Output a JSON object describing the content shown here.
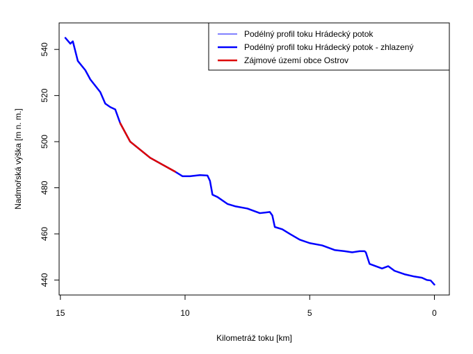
{
  "chart_data": {
    "type": "line",
    "xlabel": "Kilometráž toku [km]",
    "ylabel": "Nadmořská výška [m n. m.]",
    "xlim": [
      15.05,
      -0.6
    ],
    "ylim": [
      433.5,
      551.5
    ],
    "x_reversed": true,
    "x_ticks": [
      15,
      10,
      5,
      0
    ],
    "y_ticks": [
      440,
      460,
      480,
      500,
      520,
      540
    ],
    "grid": false,
    "legend_position": "top-right",
    "series": [
      {
        "name": "Podélný profil toku Hrádecký potok",
        "color": "#0000ff",
        "line_width": 1,
        "x": [
          14.8,
          14.6,
          14.5,
          14.3,
          14.0,
          13.8,
          13.4,
          13.2,
          13.0,
          12.8,
          12.6,
          12.4,
          12.2,
          11.8,
          11.4,
          10.9,
          10.4,
          10.1,
          9.8,
          9.4,
          9.1,
          9.0,
          8.9,
          8.7,
          8.3,
          8.0,
          7.5,
          7.0,
          6.6,
          6.5,
          6.4,
          6.1,
          5.8,
          5.4,
          5.0,
          4.5,
          4.0,
          3.6,
          3.3,
          3.0,
          2.8,
          2.75,
          2.6,
          2.1,
          1.85,
          1.6,
          1.2,
          0.8,
          0.5,
          0.3,
          0.15,
          0.0
        ],
        "y": [
          545,
          542.5,
          543.5,
          535,
          531,
          527,
          521.5,
          516.5,
          515,
          514,
          508,
          504,
          500,
          496.5,
          493,
          490,
          487,
          485,
          485,
          485.5,
          485.3,
          483,
          477,
          476,
          473,
          472,
          471,
          469,
          469.5,
          468,
          463,
          462,
          460,
          457.5,
          456,
          455,
          453,
          452.5,
          452,
          452.5,
          452.5,
          452,
          447,
          445,
          446,
          444,
          442.5,
          441.5,
          441,
          440,
          439.8,
          438
        ]
      },
      {
        "name": "Podélný profil toku Hrádecký potok - zhlazený",
        "color": "#0000ff",
        "line_width": 2.5,
        "x": [
          14.8,
          14.6,
          14.5,
          14.3,
          14.0,
          13.8,
          13.4,
          13.2,
          13.0,
          12.8,
          12.6,
          12.4,
          12.2,
          11.8,
          11.4,
          10.9,
          10.4,
          10.1,
          9.8,
          9.4,
          9.1,
          9.0,
          8.9,
          8.7,
          8.3,
          8.0,
          7.5,
          7.0,
          6.6,
          6.5,
          6.4,
          6.1,
          5.8,
          5.4,
          5.0,
          4.5,
          4.0,
          3.6,
          3.3,
          3.0,
          2.8,
          2.75,
          2.6,
          2.1,
          1.85,
          1.6,
          1.2,
          0.8,
          0.5,
          0.3,
          0.15,
          0.0
        ],
        "y": [
          545,
          542.5,
          543.5,
          535,
          531,
          527,
          521.5,
          516.5,
          515,
          514,
          508,
          504,
          500,
          496.5,
          493,
          490,
          487,
          485,
          485,
          485.5,
          485.3,
          483,
          477,
          476,
          473,
          472,
          471,
          469,
          469.5,
          468,
          463,
          462,
          460,
          457.5,
          456,
          455,
          453,
          452.5,
          452,
          452.5,
          452.5,
          452,
          447,
          445,
          446,
          444,
          442.5,
          441.5,
          441,
          440,
          439.8,
          438
        ]
      },
      {
        "name": "Zájmové území obce Ostrov",
        "color": "#dd0000",
        "line_width": 2.5,
        "x": [
          12.6,
          12.4,
          12.2,
          11.8,
          11.4,
          10.9,
          10.4
        ],
        "y": [
          508,
          504,
          500,
          496.5,
          493,
          490,
          487
        ]
      }
    ]
  }
}
